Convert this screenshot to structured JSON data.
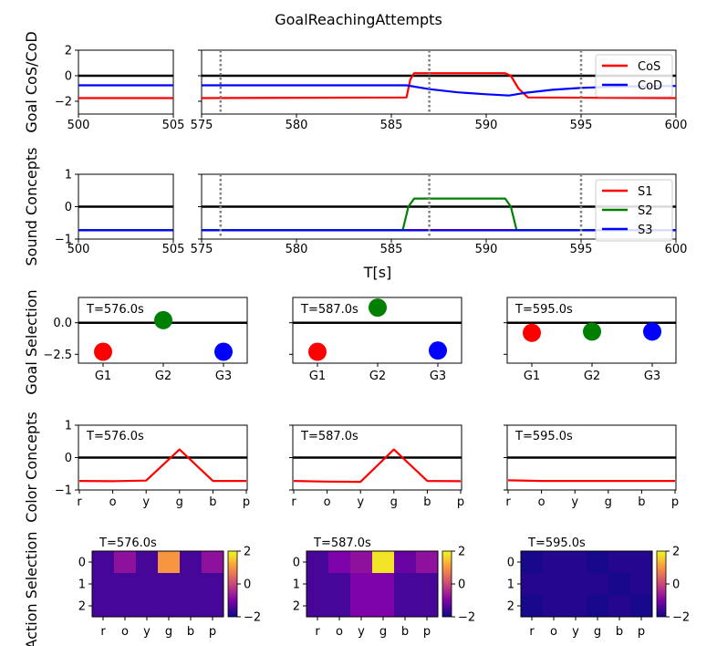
{
  "figure": {
    "title": "GoalReachingAttempts"
  },
  "chart_data": [
    {
      "id": "goal-cos-cod",
      "type": "line",
      "ylabel": "Goal CoS/CoD",
      "xlabel": "",
      "ylim": [
        -3,
        2
      ],
      "yticks": [
        -2,
        0,
        2
      ],
      "ytick_labels": [
        "−2",
        "0",
        "2"
      ],
      "panels": [
        {
          "xlim": [
            500,
            505
          ],
          "xticks": [
            500,
            505
          ],
          "xtick_labels": [
            "500",
            "505"
          ]
        },
        {
          "xlim": [
            575,
            600
          ],
          "xticks": [
            575,
            580,
            585,
            590,
            595,
            600
          ],
          "xtick_labels": [
            "575",
            "580",
            "585",
            "590",
            "595",
            "600"
          ]
        }
      ],
      "vlines": [
        576,
        587,
        595
      ],
      "hline": 0,
      "legend_position": "right",
      "series": [
        {
          "name": "CoS",
          "color": "#ff0000",
          "x": [
            500,
            505,
            575,
            585.8,
            586.0,
            586.2,
            591.0,
            591.3,
            591.7,
            592.2,
            600
          ],
          "y": [
            -1.75,
            -1.75,
            -1.75,
            -1.7,
            -0.3,
            0.2,
            0.2,
            0.0,
            -1.0,
            -1.7,
            -1.75
          ]
        },
        {
          "name": "CoD",
          "color": "#0000ff",
          "x": [
            500,
            505,
            575,
            585.8,
            587,
            588.5,
            590,
            591.2,
            592,
            593.5,
            595,
            597,
            600
          ],
          "y": [
            -0.75,
            -0.75,
            -0.75,
            -0.75,
            -1.05,
            -1.3,
            -1.45,
            -1.55,
            -1.35,
            -1.1,
            -0.95,
            -0.85,
            -0.8
          ]
        }
      ]
    },
    {
      "id": "sound-concepts",
      "type": "line",
      "ylabel": "Sound Concepts",
      "xlabel": "T[s]",
      "ylim": [
        -1,
        1
      ],
      "yticks": [
        -1,
        0,
        1
      ],
      "ytick_labels": [
        "−1",
        "0",
        "1"
      ],
      "panels": [
        {
          "xlim": [
            500,
            505
          ],
          "xticks": [
            500,
            505
          ],
          "xtick_labels": [
            "500",
            "505"
          ]
        },
        {
          "xlim": [
            575,
            600
          ],
          "xticks": [
            575,
            580,
            585,
            590,
            595,
            600
          ],
          "xtick_labels": [
            "575",
            "580",
            "585",
            "590",
            "595",
            "600"
          ]
        }
      ],
      "vlines": [
        576,
        587,
        595
      ],
      "hline": 0,
      "legend_position": "right",
      "series": [
        {
          "name": "S1",
          "color": "#ff0000",
          "x": [
            500,
            505,
            575,
            600
          ],
          "y": [
            -0.72,
            -0.72,
            -0.72,
            -0.72
          ]
        },
        {
          "name": "S2",
          "color": "#008000",
          "x": [
            500,
            505,
            575,
            585.6,
            585.9,
            586.2,
            591.0,
            591.3,
            591.6,
            600
          ],
          "y": [
            -0.72,
            -0.72,
            -0.72,
            -0.72,
            0.0,
            0.25,
            0.25,
            0.0,
            -0.72,
            -0.72
          ]
        },
        {
          "name": "S3",
          "color": "#0000ff",
          "x": [
            500,
            505,
            575,
            600
          ],
          "y": [
            -0.73,
            -0.73,
            -0.73,
            -0.73
          ]
        }
      ]
    },
    {
      "id": "goal-selection",
      "type": "scatter",
      "ylabel": "Goal Selection",
      "categories": [
        "G1",
        "G2",
        "G3"
      ],
      "ylim": [
        -3.2,
        2.0
      ],
      "yticks": [
        0.0,
        -2.5
      ],
      "ytick_labels": [
        "0.0",
        "−2.5"
      ],
      "hline": 0,
      "colors": [
        "#ff0000",
        "#008000",
        "#0000ff"
      ],
      "subplots": [
        {
          "label": "T=576.0s",
          "values": [
            -2.3,
            0.2,
            -2.3
          ]
        },
        {
          "label": "T=587.0s",
          "values": [
            -2.3,
            1.2,
            -2.2
          ]
        },
        {
          "label": "T=595.0s",
          "values": [
            -0.8,
            -0.7,
            -0.7
          ]
        }
      ]
    },
    {
      "id": "color-concepts",
      "type": "line",
      "ylabel": "Color Concepts",
      "categories": [
        "r",
        "o",
        "y",
        "g",
        "b",
        "p"
      ],
      "ylim": [
        -1,
        1
      ],
      "yticks": [
        -1,
        0,
        1
      ],
      "ytick_labels": [
        "−1",
        "0",
        "1"
      ],
      "hline": 0,
      "color": "#ff0000",
      "subplots": [
        {
          "label": "T=576.0s",
          "values": [
            -0.72,
            -0.73,
            -0.71,
            0.25,
            -0.72,
            -0.72
          ]
        },
        {
          "label": "T=587.0s",
          "values": [
            -0.72,
            -0.74,
            -0.75,
            0.25,
            -0.72,
            -0.73
          ]
        },
        {
          "label": "T=595.0s",
          "values": [
            -0.7,
            -0.72,
            -0.72,
            -0.72,
            -0.72,
            -0.72
          ]
        }
      ]
    },
    {
      "id": "action-selection",
      "type": "heatmap",
      "ylabel": "Action Selection",
      "columns": [
        "r",
        "o",
        "y",
        "g",
        "b",
        "p"
      ],
      "rows": [
        "0",
        "1",
        "2"
      ],
      "colormap": "plasma",
      "vmin": -2,
      "vmax": 2,
      "colorbar_ticks": [
        2,
        0,
        -2
      ],
      "colorbar_tick_labels": [
        "2",
        "0",
        "−2"
      ],
      "subplots": [
        {
          "label": "T=576.0s",
          "values": [
            [
              -1.5,
              -0.8,
              -1.5,
              1.0,
              -1.5,
              -0.8
            ],
            [
              -1.5,
              -1.5,
              -1.5,
              -1.5,
              -1.5,
              -1.5
            ],
            [
              -1.5,
              -1.5,
              -1.5,
              -1.5,
              -1.5,
              -1.5
            ]
          ]
        },
        {
          "label": "T=587.0s",
          "values": [
            [
              -1.5,
              -1.0,
              -0.8,
              1.8,
              -1.2,
              -0.8
            ],
            [
              -1.5,
              -1.5,
              -1.0,
              -1.0,
              -1.5,
              -1.5
            ],
            [
              -1.5,
              -1.5,
              -1.0,
              -1.0,
              -1.5,
              -1.5
            ]
          ]
        },
        {
          "label": "T=595.0s",
          "values": [
            [
              -1.9,
              -1.8,
              -1.8,
              -1.9,
              -1.8,
              -1.8
            ],
            [
              -1.8,
              -1.8,
              -1.8,
              -1.8,
              -1.9,
              -1.8
            ],
            [
              -1.9,
              -1.8,
              -1.8,
              -1.9,
              -1.8,
              -1.9
            ]
          ]
        }
      ]
    }
  ]
}
